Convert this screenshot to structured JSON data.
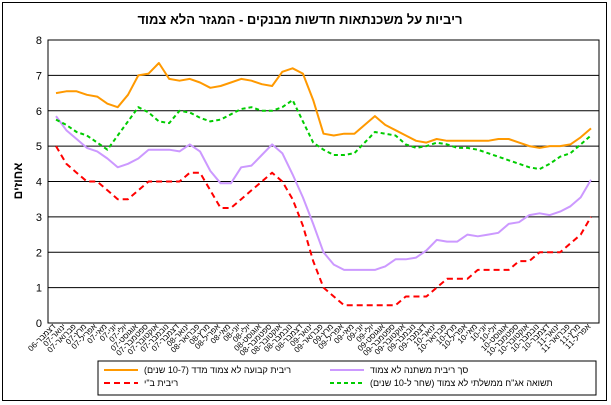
{
  "chart_data": {
    "type": "line",
    "title": "ריביות על משכנתאות חדשות מבנקים - המגזר הלא צמוד",
    "ylabel": "אחוזים",
    "xlabel": "",
    "ylim": [
      0,
      8
    ],
    "yticks": [
      0,
      1,
      2,
      3,
      4,
      5,
      6,
      7,
      8
    ],
    "grid": true,
    "legend_position": "bottom",
    "colors": {
      "fixed": "#FF9900",
      "variable": "#CC99FF",
      "boi": "#FF0000",
      "gov": "#00CC00"
    },
    "x": [
      "דצמבר-06",
      "ינואר-07",
      "פברואר-07",
      "מרץ-07",
      "אפריל-07",
      "מאי-07",
      "יוני-07",
      "יולי-07",
      "אוגוסט-07",
      "ספטמבר-07",
      "אוקטובר-07",
      "נובמבר-07",
      "דצמבר-07",
      "ינואר-08",
      "פברואר-08",
      "מרץ-08",
      "אפריל-08",
      "מאי-08",
      "יוני-08",
      "יולי-08",
      "אוגוסט-08",
      "ספטמבר-08",
      "אוקטובר-08",
      "נובמבר-08",
      "דצמבר-08",
      "ינואר-09",
      "פברואר-09",
      "מרץ-09",
      "אפריל-09",
      "מאי-09",
      "יוני-09",
      "יולי-09",
      "אוגוסט-09",
      "ספטמבר-09",
      "אוקטובר-09",
      "נובמבר-09",
      "דצמבר-09",
      "ינואר-10",
      "פברואר-10",
      "מרץ-10",
      "אפריל-10",
      "מאי-10",
      "יוני-10",
      "יולי-10",
      "אוגוסט-10",
      "ספטמבר-10",
      "אוקטובר-10",
      "נובמבר-10",
      "דצמבר-10",
      "ינואר-11",
      "פברואר-11",
      "מרץ-11",
      "אפריל-11"
    ],
    "series": [
      {
        "key": "fixed",
        "name": "ריבית קבועה לא צמוד מדד (10-7 שנים)",
        "dash": "",
        "values": [
          6.5,
          6.55,
          6.55,
          6.45,
          6.4,
          6.2,
          6.1,
          6.45,
          7.0,
          7.05,
          7.35,
          6.9,
          6.85,
          6.9,
          6.8,
          6.65,
          6.7,
          6.8,
          6.9,
          6.85,
          6.75,
          6.7,
          7.1,
          7.2,
          7.05,
          6.3,
          5.35,
          5.3,
          5.35,
          5.35,
          5.6,
          5.85,
          5.6,
          5.45,
          5.3,
          5.15,
          5.1,
          5.2,
          5.15,
          5.15,
          5.15,
          5.15,
          5.15,
          5.2,
          5.2,
          5.1,
          5.0,
          4.95,
          5.0,
          5.0,
          5.05,
          5.25,
          5.5
        ]
      },
      {
        "key": "variable",
        "name": "סך ריבית משתנה לא צמוד",
        "dash": "",
        "values": [
          5.85,
          5.45,
          5.2,
          4.95,
          4.85,
          4.65,
          4.4,
          4.5,
          4.65,
          4.9,
          4.9,
          4.9,
          4.85,
          5.05,
          4.85,
          4.3,
          3.95,
          3.95,
          4.4,
          4.45,
          4.75,
          5.05,
          4.8,
          4.2,
          3.55,
          2.8,
          2.0,
          1.65,
          1.5,
          1.5,
          1.5,
          1.5,
          1.6,
          1.8,
          1.8,
          1.85,
          2.05,
          2.35,
          2.3,
          2.3,
          2.5,
          2.45,
          2.5,
          2.55,
          2.8,
          2.85,
          3.05,
          3.1,
          3.05,
          3.15,
          3.3,
          3.55,
          4.05
        ]
      },
      {
        "key": "boi",
        "name": "ריבית ב\"י",
        "dash": "6 4",
        "values": [
          5.0,
          4.5,
          4.25,
          4.0,
          4.0,
          3.75,
          3.5,
          3.5,
          3.75,
          4.0,
          4.0,
          4.0,
          4.0,
          4.25,
          4.25,
          3.75,
          3.25,
          3.25,
          3.5,
          3.75,
          4.0,
          4.25,
          4.0,
          3.5,
          2.75,
          1.75,
          1.0,
          0.75,
          0.5,
          0.5,
          0.5,
          0.5,
          0.5,
          0.5,
          0.75,
          0.75,
          0.75,
          1.0,
          1.25,
          1.25,
          1.25,
          1.5,
          1.5,
          1.5,
          1.5,
          1.75,
          1.75,
          2.0,
          2.0,
          2.0,
          2.25,
          2.5,
          3.0
        ]
      },
      {
        "key": "gov",
        "name": "תשואה אג\"ח ממשלתי לא צמוד (שחר ל-10 שנים)",
        "dash": "4 3",
        "values": [
          5.75,
          5.6,
          5.4,
          5.3,
          5.1,
          4.9,
          5.3,
          5.7,
          6.1,
          5.95,
          5.7,
          5.65,
          6.0,
          5.95,
          5.8,
          5.7,
          5.75,
          5.9,
          6.05,
          6.1,
          6.0,
          6.0,
          6.1,
          6.3,
          5.7,
          5.1,
          4.9,
          4.75,
          4.75,
          4.8,
          5.1,
          5.4,
          5.35,
          5.3,
          5.05,
          4.95,
          5.0,
          5.1,
          5.05,
          4.95,
          4.95,
          4.9,
          4.8,
          4.7,
          4.6,
          4.5,
          4.4,
          4.35,
          4.5,
          4.7,
          4.8,
          5.05,
          5.3
        ]
      }
    ]
  }
}
